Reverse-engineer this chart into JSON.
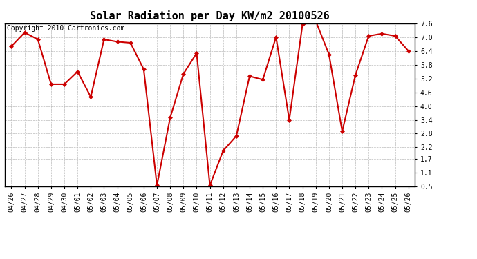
{
  "title": "Solar Radiation per Day KW/m2 20100526",
  "copyright_text": "Copyright 2010 Cartronics.com",
  "dates": [
    "04/26",
    "04/27",
    "04/28",
    "04/29",
    "04/30",
    "05/01",
    "05/02",
    "05/03",
    "05/04",
    "05/05",
    "05/06",
    "05/07",
    "05/08",
    "05/09",
    "05/10",
    "05/11",
    "05/12",
    "05/13",
    "05/14",
    "05/15",
    "05/16",
    "05/17",
    "05/18",
    "05/19",
    "05/20",
    "05/21",
    "05/22",
    "05/23",
    "05/24",
    "05/25",
    "05/26"
  ],
  "values": [
    6.6,
    7.2,
    6.9,
    4.95,
    4.95,
    5.5,
    4.4,
    6.9,
    6.8,
    6.75,
    5.6,
    0.55,
    3.5,
    5.4,
    6.3,
    0.55,
    2.05,
    2.7,
    5.3,
    5.15,
    7.0,
    3.4,
    7.55,
    7.7,
    6.25,
    2.9,
    5.35,
    7.05,
    7.15,
    7.05,
    6.4
  ],
  "line_color": "#cc0000",
  "marker": "D",
  "marker_size": 3,
  "marker_color": "#cc0000",
  "background_color": "#ffffff",
  "grid_color": "#bbbbbb",
  "ylim": [
    0.5,
    7.6
  ],
  "yticks": [
    0.5,
    1.1,
    1.7,
    2.2,
    2.8,
    3.4,
    4.0,
    4.6,
    5.2,
    5.8,
    6.4,
    7.0,
    7.6
  ],
  "title_fontsize": 11,
  "tick_fontsize": 7,
  "copyright_fontsize": 7
}
